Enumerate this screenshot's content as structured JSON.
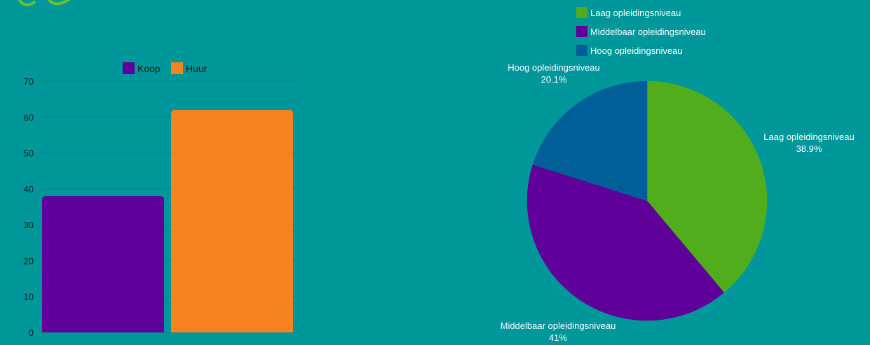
{
  "colors": {
    "background": "#00979a",
    "koop": "#5e0099",
    "huur": "#f5831f",
    "laag": "#52ad1c",
    "middelbaar": "#5e0099",
    "hoog": "#005f99",
    "text": "#1a1a1a",
    "label_text": "#ffffff",
    "logo": "#6fc12a"
  },
  "logo": {
    "icon": "eye-logo-icon"
  },
  "chart_data": [
    {
      "type": "bar",
      "categories": [
        "Koop",
        "Huur"
      ],
      "series": [
        {
          "name": "Koop",
          "values": [
            38,
            null
          ]
        },
        {
          "name": "Huur",
          "values": [
            null,
            62
          ]
        }
      ],
      "values": [
        38,
        62
      ],
      "yticks": [
        "0",
        "10",
        "20",
        "30",
        "40",
        "50",
        "60",
        "70"
      ],
      "ylim": [
        0,
        70
      ],
      "grid": true,
      "legend": [
        "Koop",
        "Huur"
      ],
      "legend_position": "top-center",
      "title": "",
      "xlabel": "",
      "ylabel": ""
    },
    {
      "type": "pie",
      "slices": [
        {
          "label": "Laag opleidingsniveau",
          "value": 38.9,
          "pct_label": "38.9%"
        },
        {
          "label": "Middelbaar opleidingsniveau",
          "value": 41,
          "pct_label": "41%"
        },
        {
          "label": "Hoog opleidingsniveau",
          "value": 20.1,
          "pct_label": "20.1%"
        }
      ],
      "legend": [
        "Laag opleidingsniveau",
        "Middelbaar opleidingsniveau",
        "Hoog opleidingsniveau"
      ],
      "legend_position": "top",
      "title": ""
    }
  ]
}
